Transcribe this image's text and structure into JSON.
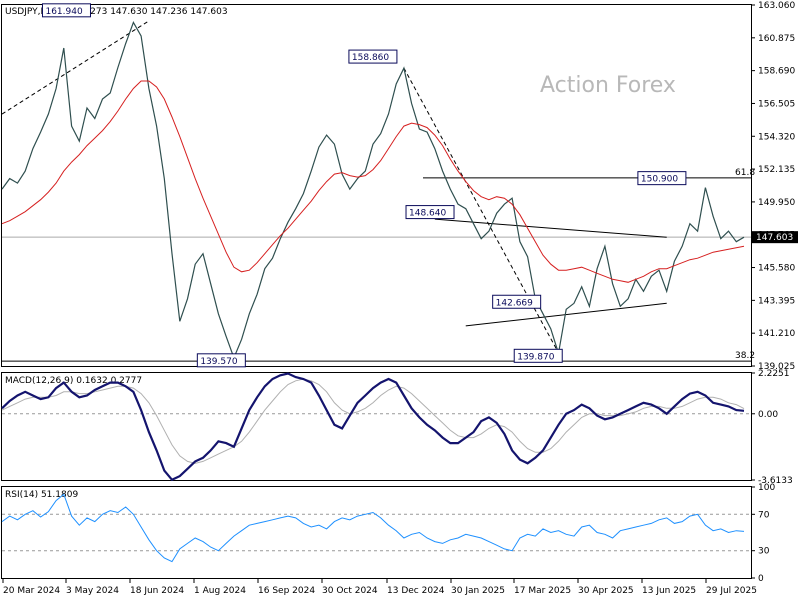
{
  "chart_data": {
    "type": "line",
    "symbol": "USDJPY,Daily",
    "ohlc_header": "147.273 147.630 147.236 147.603",
    "watermark": "Action Forex",
    "x_tick_labels": [
      "20 Mar 2024",
      "3 May 2024",
      "18 Jun 2024",
      "1 Aug 2024",
      "16 Sep 2024",
      "30 Oct 2024",
      "13 Dec 2024",
      "30 Jan 2025",
      "17 Mar 2025",
      "30 Apr 2025",
      "13 Jun 2025",
      "29 Jul 2025"
    ],
    "price_axis": {
      "ticks": [
        "163.060",
        "160.875",
        "158.690",
        "156.505",
        "154.320",
        "152.135",
        "149.950",
        "147.765",
        "145.580",
        "143.395",
        "141.210",
        "139.025"
      ],
      "ylim": [
        139.025,
        163.06
      ],
      "last_price": "147.603"
    },
    "price_series": [
      {
        "name": "USDJPY",
        "color": "#2f4f4f",
        "values": [
          150.8,
          151.5,
          151.2,
          152.0,
          153.5,
          154.6,
          155.8,
          157.5,
          160.2,
          155.0,
          154.0,
          156.2,
          155.5,
          156.8,
          157.2,
          158.9,
          160.5,
          161.9,
          161.0,
          157.5,
          155.0,
          151.5,
          146.5,
          142.0,
          143.5,
          145.8,
          146.5,
          144.5,
          142.5,
          141.0,
          139.57,
          140.8,
          142.5,
          143.8,
          145.5,
          146.2,
          147.5,
          148.6,
          149.5,
          150.5,
          152.0,
          153.6,
          154.4,
          153.8,
          151.8,
          150.8,
          151.5,
          152.0,
          153.8,
          154.5,
          155.8,
          157.8,
          158.86,
          156.5,
          154.8,
          154.6,
          153.5,
          152.0,
          150.8,
          149.8,
          149.5,
          148.5,
          147.5,
          148.0,
          149.2,
          149.8,
          150.2,
          147.3,
          146.3,
          143.5,
          142.5,
          141.5,
          139.87,
          142.8,
          143.2,
          144.3,
          143.0,
          145.5,
          147.0,
          144.5,
          143.0,
          143.5,
          144.8,
          144.0,
          145.0,
          145.4,
          144.0,
          146.0,
          147.0,
          148.5,
          148.0,
          150.9,
          149.0,
          147.5,
          148.0,
          147.3,
          147.603
        ]
      },
      {
        "name": "MA",
        "color": "#d62020",
        "values": [
          148.5,
          148.7,
          149.0,
          149.3,
          149.7,
          150.1,
          150.6,
          151.2,
          152.0,
          152.6,
          153.1,
          153.7,
          154.2,
          154.7,
          155.3,
          156.0,
          156.8,
          157.5,
          158.0,
          158.0,
          157.6,
          156.8,
          155.6,
          154.3,
          152.9,
          151.5,
          150.2,
          149.0,
          147.8,
          146.6,
          145.6,
          145.3,
          145.4,
          145.9,
          146.5,
          147.1,
          147.7,
          148.2,
          148.8,
          149.4,
          150.0,
          150.7,
          151.3,
          151.8,
          151.9,
          151.7,
          151.6,
          151.7,
          152.1,
          152.7,
          153.5,
          154.3,
          155.0,
          155.2,
          155.1,
          154.9,
          154.4,
          153.7,
          152.8,
          152.0,
          151.3,
          150.7,
          150.3,
          150.1,
          150.3,
          150.2,
          149.8,
          149.1,
          148.2,
          147.3,
          146.4,
          145.8,
          145.4,
          145.4,
          145.5,
          145.6,
          145.4,
          145.2,
          145.0,
          144.8,
          144.7,
          144.6,
          144.8,
          145.0,
          145.3,
          145.5,
          145.5,
          145.7,
          145.9,
          146.1,
          146.2,
          146.4,
          146.6,
          146.7,
          146.8,
          146.9,
          147.0
        ]
      }
    ],
    "annotations": [
      "161.940",
      "158.860",
      "148.640",
      "150.900",
      "142.669",
      "139.570",
      "139.870"
    ],
    "fib_labels": [
      "61.8",
      "38.2"
    ],
    "macd": {
      "label": "MACD(12,26,9) 0.1632 0.2777",
      "ticks": [
        "2.2251",
        "0.00",
        "-3.6133"
      ],
      "ylim": [
        -3.6133,
        2.2251
      ],
      "macd_values": [
        0.3,
        0.7,
        1.0,
        1.2,
        1.0,
        0.8,
        0.9,
        1.4,
        1.7,
        1.2,
        0.9,
        1.0,
        1.3,
        1.5,
        1.7,
        1.7,
        1.5,
        1.2,
        0.2,
        -1.0,
        -2.0,
        -3.1,
        -3.6,
        -3.4,
        -3.0,
        -2.6,
        -2.4,
        -2.0,
        -1.5,
        -1.6,
        -1.8,
        -0.8,
        0.2,
        0.9,
        1.5,
        1.9,
        2.1,
        2.2,
        2.0,
        1.9,
        1.7,
        1.0,
        0.2,
        -0.6,
        -0.8,
        -0.1,
        0.6,
        1.0,
        1.4,
        1.7,
        1.9,
        1.7,
        1.0,
        0.3,
        -0.2,
        -0.6,
        -0.9,
        -1.3,
        -1.6,
        -1.6,
        -1.3,
        -1.0,
        -0.4,
        -0.2,
        -0.5,
        -1.1,
        -2.0,
        -2.5,
        -2.7,
        -2.4,
        -2.0,
        -1.3,
        -0.6,
        0.0,
        0.2,
        0.5,
        0.3,
        -0.1,
        -0.3,
        -0.2,
        0.0,
        0.2,
        0.4,
        0.6,
        0.5,
        0.3,
        0.0,
        0.4,
        0.8,
        1.1,
        1.2,
        1.0,
        0.6,
        0.5,
        0.4,
        0.2,
        0.16
      ],
      "signal_values": [
        0.2,
        0.4,
        0.6,
        0.8,
        0.9,
        0.9,
        0.9,
        1.0,
        1.2,
        1.2,
        1.1,
        1.1,
        1.2,
        1.3,
        1.4,
        1.5,
        1.5,
        1.4,
        1.1,
        0.6,
        -0.1,
        -0.9,
        -1.7,
        -2.3,
        -2.6,
        -2.7,
        -2.6,
        -2.4,
        -2.2,
        -2.0,
        -1.8,
        -1.5,
        -1.0,
        -0.4,
        0.2,
        0.7,
        1.2,
        1.6,
        1.8,
        1.9,
        1.8,
        1.6,
        1.2,
        0.6,
        0.2,
        0.0,
        0.1,
        0.3,
        0.6,
        1.0,
        1.3,
        1.5,
        1.4,
        1.1,
        0.7,
        0.3,
        -0.1,
        -0.5,
        -0.9,
        -1.2,
        -1.3,
        -1.3,
        -1.1,
        -0.8,
        -0.6,
        -0.7,
        -1.0,
        -1.5,
        -1.9,
        -2.1,
        -2.1,
        -1.9,
        -1.5,
        -1.0,
        -0.6,
        -0.2,
        0.0,
        0.0,
        -0.1,
        -0.1,
        -0.1,
        0.0,
        0.1,
        0.3,
        0.4,
        0.4,
        0.3,
        0.3,
        0.4,
        0.6,
        0.8,
        0.9,
        0.9,
        0.8,
        0.6,
        0.5,
        0.28
      ]
    },
    "rsi": {
      "label": "RSI(14) 51.1809",
      "ticks": [
        "100",
        "70",
        "30",
        "0"
      ],
      "ylim": [
        0,
        100
      ],
      "values": [
        62,
        68,
        64,
        70,
        74,
        67,
        73,
        85,
        92,
        68,
        58,
        66,
        62,
        70,
        74,
        72,
        78,
        70,
        56,
        42,
        30,
        22,
        18,
        32,
        38,
        44,
        40,
        34,
        30,
        38,
        46,
        52,
        58,
        60,
        62,
        64,
        66,
        68,
        66,
        60,
        56,
        58,
        54,
        62,
        66,
        64,
        68,
        70,
        72,
        66,
        58,
        52,
        44,
        48,
        50,
        44,
        40,
        38,
        42,
        44,
        48,
        46,
        44,
        40,
        36,
        32,
        30,
        44,
        48,
        46,
        54,
        50,
        52,
        48,
        46,
        56,
        58,
        50,
        48,
        44,
        52,
        54,
        56,
        58,
        60,
        64,
        66,
        60,
        62,
        68,
        70,
        58,
        52,
        54,
        50,
        52,
        51.18
      ]
    }
  }
}
